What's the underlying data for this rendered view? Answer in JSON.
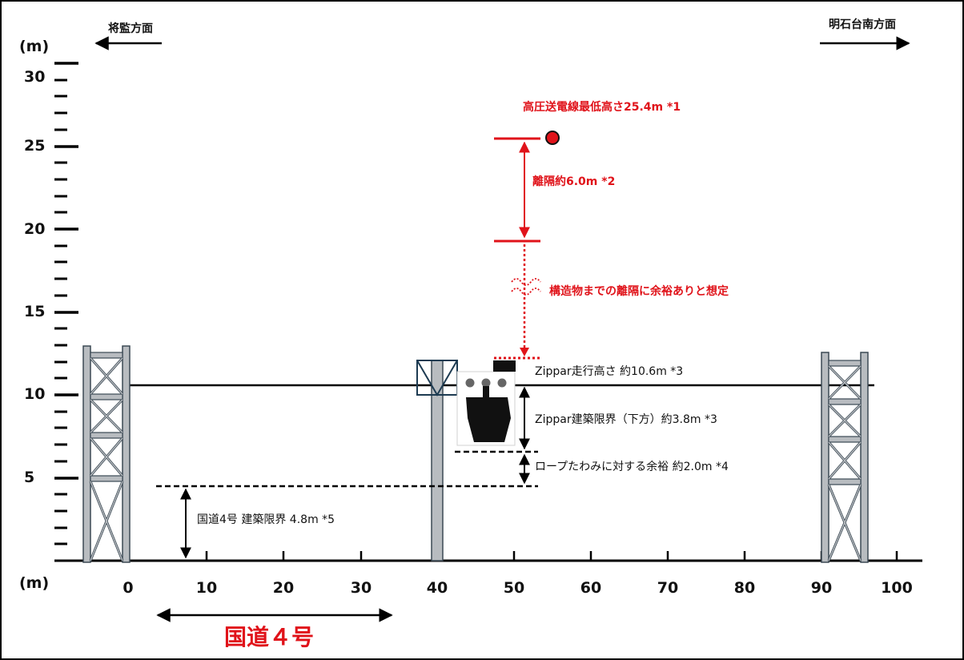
{
  "colors": {
    "accent_red": "#e0131a",
    "pier_fill": "#b8bcc0",
    "pier_stroke": "#3b4954",
    "gondola": "#111111"
  },
  "units": {
    "y_unit": "(m)",
    "x_unit": "(m)"
  },
  "directions": {
    "left_label": "将監方面",
    "right_label": "明石台南方面"
  },
  "axes": {
    "x_ticks": [
      "0",
      "10",
      "20",
      "30",
      "40",
      "50",
      "60",
      "70",
      "80",
      "90",
      "100"
    ],
    "y_ticks": [
      "5",
      "10",
      "15",
      "20",
      "25",
      "30"
    ]
  },
  "annotations": {
    "power_line": "高圧送電線最低高さ25.4m *1",
    "separation": "離隔約6.0m *2",
    "structure_margin": "構造物までの離隔に余裕ありと想定",
    "zippar_height": "Zippar走行高さ 約10.6m *3",
    "zippar_clearance": "Zippar建築限界（下方）約3.8m *3",
    "rope_sag": "ロープたわみに対する余裕 約2.0m *4",
    "road_clearance": "国道4号 建築限界 4.8m *5"
  },
  "road": {
    "label": "国道４号"
  }
}
